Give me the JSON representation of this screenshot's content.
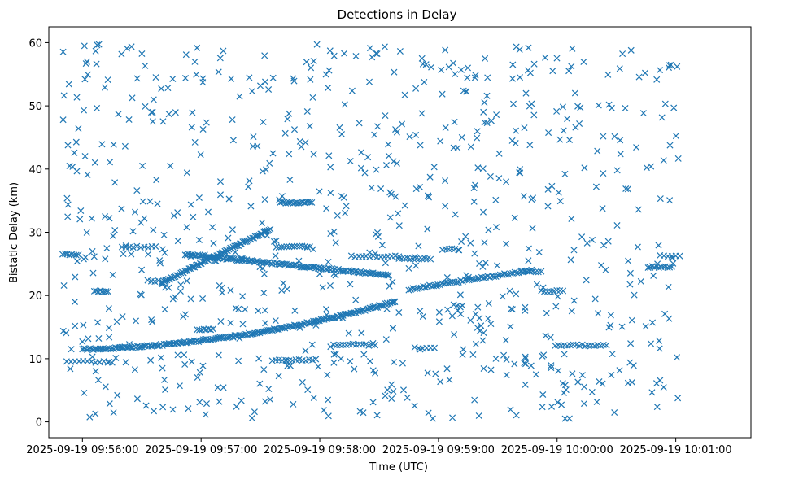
{
  "chart_data": {
    "type": "scatter",
    "title": "Detections in Delay",
    "xlabel": "Time (UTC)",
    "ylabel": "Bistatic Delay (km)",
    "marker": "x",
    "color": "#1f77b4",
    "x_unit": "seconds since 2025-09-19 09:56:00 UTC",
    "xlim": [
      -17,
      338
    ],
    "ylim": [
      -2.5,
      62.5
    ],
    "x_ticks": [
      {
        "value": 0,
        "label": "2025-09-19 09:56:00"
      },
      {
        "value": 60,
        "label": "2025-09-19 09:57:00"
      },
      {
        "value": 120,
        "label": "2025-09-19 09:58:00"
      },
      {
        "value": 180,
        "label": "2025-09-19 09:59:00"
      },
      {
        "value": 240,
        "label": "2025-09-19 10:00:00"
      },
      {
        "value": 300,
        "label": "2025-09-19 10:01:00"
      }
    ],
    "y_ticks": [
      {
        "value": 0,
        "label": "0"
      },
      {
        "value": 10,
        "label": "10"
      },
      {
        "value": 20,
        "label": "20"
      },
      {
        "value": 30,
        "label": "30"
      },
      {
        "value": 40,
        "label": "40"
      },
      {
        "value": 50,
        "label": "50"
      },
      {
        "value": 60,
        "label": "60"
      }
    ],
    "grid": false,
    "time_range": [
      -10,
      302
    ],
    "tracks": [
      {
        "name": "track-rising-low",
        "x_start": 0,
        "x_end": 158,
        "y_start": 11.5,
        "y_end": 19,
        "shape": "quadratic",
        "count": 200
      },
      {
        "name": "track-rising-mid",
        "x_start": 40,
        "x_end": 95,
        "y_start": 22,
        "y_end": 30.5,
        "shape": "linear",
        "count": 80
      },
      {
        "name": "track-descending",
        "x_start": 52,
        "x_end": 155,
        "y_start": 26.5,
        "y_end": 23.2,
        "shape": "linear",
        "count": 130
      },
      {
        "name": "track-rising-late",
        "x_start": 165,
        "x_end": 227,
        "y_start": 21,
        "y_end": 24,
        "shape": "linear",
        "count": 60
      }
    ],
    "segments": [
      {
        "x_start": -10,
        "x_end": -2,
        "y": 26.5,
        "count": 8
      },
      {
        "x_start": -8,
        "x_end": 15,
        "y": 9.5,
        "count": 12
      },
      {
        "x_start": 6,
        "x_end": 13,
        "y": 20.7,
        "count": 8
      },
      {
        "x_start": 20,
        "x_end": 37,
        "y": 27.7,
        "count": 10
      },
      {
        "x_start": 33,
        "x_end": 42,
        "y": 22.3,
        "count": 6
      },
      {
        "x_start": 58,
        "x_end": 66,
        "y": 14.6,
        "count": 8
      },
      {
        "x_start": 100,
        "x_end": 116,
        "y": 34.7,
        "count": 18
      },
      {
        "x_start": 98,
        "x_end": 115,
        "y": 27.7,
        "count": 14
      },
      {
        "x_start": 96,
        "x_end": 118,
        "y": 9.8,
        "count": 14
      },
      {
        "x_start": 127,
        "x_end": 148,
        "y": 12.2,
        "count": 14
      },
      {
        "x_start": 136,
        "x_end": 160,
        "y": 26.2,
        "count": 14
      },
      {
        "x_start": 160,
        "x_end": 176,
        "y": 25.8,
        "count": 12
      },
      {
        "x_start": 168,
        "x_end": 178,
        "y": 11.7,
        "count": 6
      },
      {
        "x_start": 182,
        "x_end": 190,
        "y": 27.3,
        "count": 6
      },
      {
        "x_start": 222,
        "x_end": 232,
        "y": 23.8,
        "count": 8
      },
      {
        "x_start": 232,
        "x_end": 243,
        "y": 20.7,
        "count": 8
      },
      {
        "x_start": 239,
        "x_end": 265,
        "y": 12.1,
        "count": 18
      },
      {
        "x_start": 286,
        "x_end": 298,
        "y": 24.5,
        "count": 12
      },
      {
        "x_start": 292,
        "x_end": 302,
        "y": 26.3,
        "count": 6
      }
    ],
    "noise_points": {
      "count": 780,
      "seed": 20250919
    }
  }
}
